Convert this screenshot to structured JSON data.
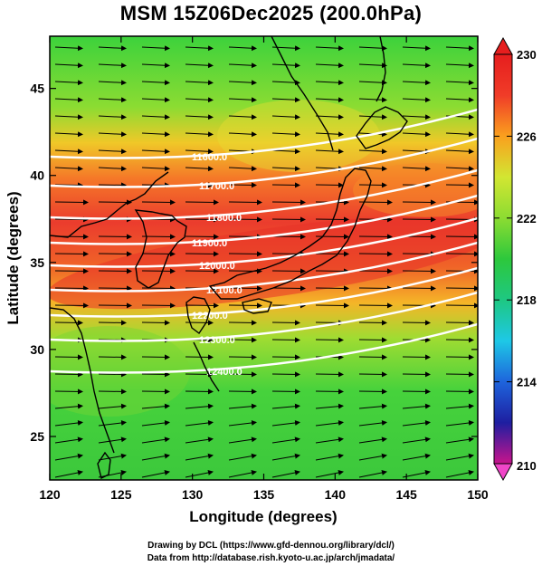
{
  "title": "MSM 15Z06Dec2025 (200.0hPa)",
  "x_axis": {
    "label": "Longitude (degrees)",
    "ticks": [
      "120",
      "125",
      "130",
      "135",
      "140",
      "145",
      "150"
    ]
  },
  "y_axis": {
    "label": "Latitude  (degrees)",
    "ticks": [
      "25",
      "30",
      "35",
      "40",
      "45"
    ]
  },
  "colorbar": {
    "ticks": [
      "230",
      "226",
      "222",
      "218",
      "214",
      "210"
    ],
    "stops": [
      "#c8148c",
      "#1e1ea0",
      "#1e64dc",
      "#1ec8e6",
      "#1ec882",
      "#2dc83c",
      "#8cdc32",
      "#d2e632",
      "#faa01e",
      "#f03c28",
      "#e61e1e"
    ]
  },
  "contour_labels": [
    "11600.0",
    "11700.0",
    "11800.0",
    "11900.0",
    "12000.0",
    "12100.0",
    "12200.0",
    "12300.0",
    "12400.0"
  ],
  "credits": {
    "line1": "Drawing by DCL (https://www.gfd-dennou.org/library/dcl/)",
    "line2": "Data from http://database.rish.kyoto-u.ac.jp/arch/jmadata/"
  }
}
